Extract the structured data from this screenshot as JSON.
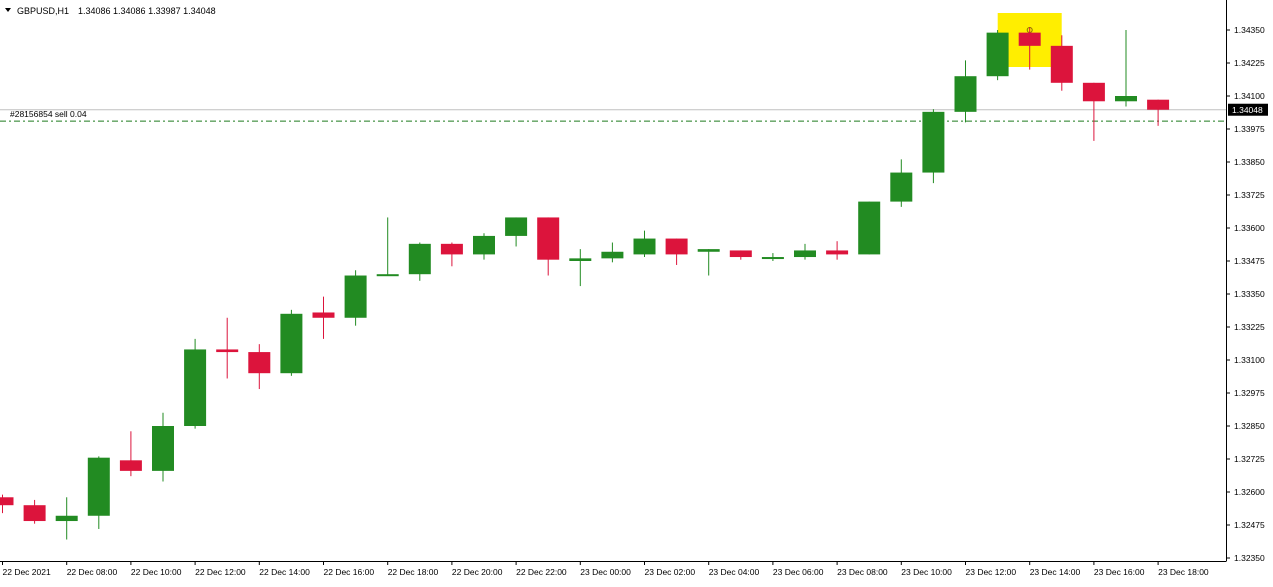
{
  "header": {
    "symbol": "GBPUSD,H1",
    "ohlc": "1.34086 1.34086 1.33987 1.34048"
  },
  "order_line": {
    "label": "#28156854 sell 0.04",
    "price": 1.34005,
    "color": "#1e7b1e"
  },
  "current_price": {
    "value": 1.34048,
    "label": "1.34048",
    "line_color": "#c0c0c0"
  },
  "highlight": {
    "color": "#ffee00",
    "bar_index": 32,
    "icon": "alert-bell-icon"
  },
  "colors": {
    "bull": "#228b22",
    "bear": "#dc143c",
    "axis": "#000000",
    "background": "#ffffff"
  },
  "chart_data": {
    "type": "candlestick",
    "price_axis": {
      "ylim": [
        1.323,
        1.345
      ],
      "ticks": [
        "1.34350",
        "1.34225",
        "1.34100",
        "1.33975",
        "1.33850",
        "1.33725",
        "1.33600",
        "1.33475",
        "1.33350",
        "1.33225",
        "1.33100",
        "1.32975",
        "1.32850",
        "1.32725",
        "1.32600",
        "1.32475",
        "1.32350"
      ]
    },
    "time_axis": {
      "labels": [
        {
          "i": 0,
          "text": "22 Dec 2021"
        },
        {
          "i": 2,
          "text": "22 Dec 08:00"
        },
        {
          "i": 4,
          "text": "22 Dec 10:00"
        },
        {
          "i": 6,
          "text": "22 Dec 12:00"
        },
        {
          "i": 8,
          "text": "22 Dec 14:00"
        },
        {
          "i": 10,
          "text": "22 Dec 16:00"
        },
        {
          "i": 12,
          "text": "22 Dec 18:00"
        },
        {
          "i": 14,
          "text": "22 Dec 20:00"
        },
        {
          "i": 16,
          "text": "22 Dec 22:00"
        },
        {
          "i": 18,
          "text": "23 Dec 00:00"
        },
        {
          "i": 20,
          "text": "23 Dec 02:00"
        },
        {
          "i": 22,
          "text": "23 Dec 04:00"
        },
        {
          "i": 24,
          "text": "23 Dec 06:00"
        },
        {
          "i": 26,
          "text": "23 Dec 08:00"
        },
        {
          "i": 28,
          "text": "23 Dec 10:00"
        },
        {
          "i": 30,
          "text": "23 Dec 12:00"
        },
        {
          "i": 32,
          "text": "23 Dec 14:00"
        },
        {
          "i": 34,
          "text": "23 Dec 16:00"
        },
        {
          "i": 36,
          "text": "23 Dec 18:00"
        }
      ]
    },
    "candles": [
      {
        "o": 1.3258,
        "h": 1.3259,
        "l": 1.3252,
        "c": 1.3255
      },
      {
        "o": 1.3255,
        "h": 1.3257,
        "l": 1.3248,
        "c": 1.3249
      },
      {
        "o": 1.3249,
        "h": 1.3258,
        "l": 1.3242,
        "c": 1.3251
      },
      {
        "o": 1.3251,
        "h": 1.32735,
        "l": 1.3246,
        "c": 1.3273
      },
      {
        "o": 1.3272,
        "h": 1.3283,
        "l": 1.3266,
        "c": 1.3268
      },
      {
        "o": 1.3268,
        "h": 1.329,
        "l": 1.3264,
        "c": 1.3285
      },
      {
        "o": 1.3285,
        "h": 1.3318,
        "l": 1.3284,
        "c": 1.3314
      },
      {
        "o": 1.3314,
        "h": 1.3326,
        "l": 1.3303,
        "c": 1.3313
      },
      {
        "o": 1.3313,
        "h": 1.3316,
        "l": 1.3299,
        "c": 1.3305
      },
      {
        "o": 1.3305,
        "h": 1.3329,
        "l": 1.3304,
        "c": 1.33275
      },
      {
        "o": 1.3328,
        "h": 1.3334,
        "l": 1.3318,
        "c": 1.3326
      },
      {
        "o": 1.3326,
        "h": 1.3344,
        "l": 1.3323,
        "c": 1.3342
      },
      {
        "o": 1.3342,
        "h": 1.3364,
        "l": 1.3342,
        "c": 1.33425
      },
      {
        "o": 1.33425,
        "h": 1.33545,
        "l": 1.334,
        "c": 1.3354
      },
      {
        "o": 1.3354,
        "h": 1.33545,
        "l": 1.33455,
        "c": 1.335
      },
      {
        "o": 1.335,
        "h": 1.3358,
        "l": 1.3348,
        "c": 1.3357
      },
      {
        "o": 1.3357,
        "h": 1.3364,
        "l": 1.3353,
        "c": 1.3364
      },
      {
        "o": 1.3364,
        "h": 1.3364,
        "l": 1.3342,
        "c": 1.3348
      },
      {
        "o": 1.33475,
        "h": 1.3352,
        "l": 1.3338,
        "c": 1.33485
      },
      {
        "o": 1.33485,
        "h": 1.33545,
        "l": 1.3347,
        "c": 1.3351
      },
      {
        "o": 1.335,
        "h": 1.3359,
        "l": 1.3349,
        "c": 1.3356
      },
      {
        "o": 1.3356,
        "h": 1.3356,
        "l": 1.3346,
        "c": 1.335
      },
      {
        "o": 1.3351,
        "h": 1.3352,
        "l": 1.3342,
        "c": 1.3352
      },
      {
        "o": 1.33515,
        "h": 1.33515,
        "l": 1.3348,
        "c": 1.3349
      },
      {
        "o": 1.33485,
        "h": 1.33505,
        "l": 1.33475,
        "c": 1.3349
      },
      {
        "o": 1.3349,
        "h": 1.3354,
        "l": 1.3348,
        "c": 1.33515
      },
      {
        "o": 1.33515,
        "h": 1.3355,
        "l": 1.3348,
        "c": 1.335
      },
      {
        "o": 1.335,
        "h": 1.337,
        "l": 1.335,
        "c": 1.337
      },
      {
        "o": 1.337,
        "h": 1.3386,
        "l": 1.3368,
        "c": 1.3381
      },
      {
        "o": 1.3381,
        "h": 1.3405,
        "l": 1.3377,
        "c": 1.3404
      },
      {
        "o": 1.3404,
        "h": 1.34235,
        "l": 1.34,
        "c": 1.34175
      },
      {
        "o": 1.34175,
        "h": 1.3435,
        "l": 1.3416,
        "c": 1.3434
      },
      {
        "o": 1.3434,
        "h": 1.3436,
        "l": 1.342,
        "c": 1.3429
      },
      {
        "o": 1.3429,
        "h": 1.3433,
        "l": 1.3412,
        "c": 1.3415
      },
      {
        "o": 1.3415,
        "h": 1.3415,
        "l": 1.3393,
        "c": 1.3408
      },
      {
        "o": 1.3408,
        "h": 1.3435,
        "l": 1.3406,
        "c": 1.341
      },
      {
        "o": 1.34086,
        "h": 1.34086,
        "l": 1.33987,
        "c": 1.34048
      }
    ]
  }
}
